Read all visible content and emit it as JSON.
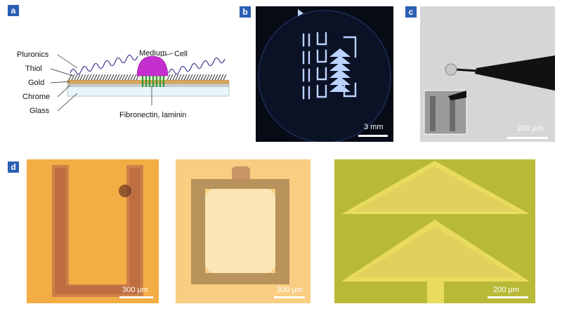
{
  "figure": {
    "panels": {
      "a": {
        "label": "a",
        "layers": {
          "pluronics": "Pluronics",
          "thiol": "Thiol",
          "gold": "Gold",
          "chrome": "Chrome",
          "glass": "Glass"
        },
        "medium": "Medium",
        "cell": "Cell",
        "fibronectin": "Fibronectin, laminin"
      },
      "b": {
        "label": "b",
        "scale": "3 mm"
      },
      "c": {
        "label": "c",
        "scale": "200 μm"
      },
      "d": {
        "label": "d",
        "images": [
          {
            "scale": "300 μm"
          },
          {
            "scale": "300 μm"
          },
          {
            "scale": "200 μm"
          }
        ]
      }
    }
  }
}
